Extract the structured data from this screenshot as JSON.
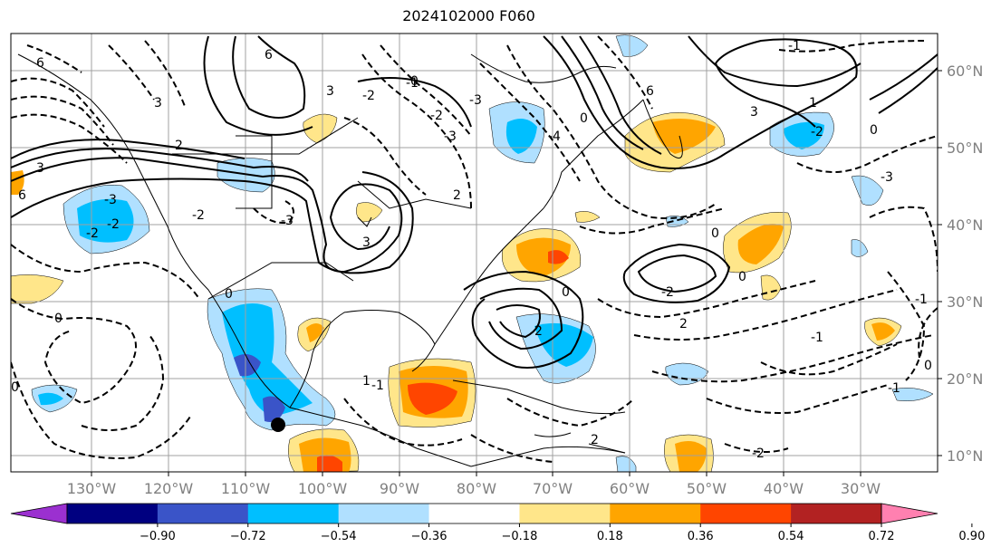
{
  "title": "2024102000 F060",
  "lat_labels": [
    "60°N",
    "50°N",
    "40°N",
    "30°N",
    "20°N",
    "10°N"
  ],
  "lon_labels": [
    "130°W",
    "120°W",
    "110°W",
    "100°W",
    "90°W",
    "80°W",
    "70°W",
    "60°W",
    "50°W",
    "40°W",
    "30°W"
  ],
  "colorbar": {
    "tick_labels": [
      "−0.90",
      "−0.72",
      "−0.54",
      "−0.36",
      "−0.18",
      "0.18",
      "0.36",
      "0.54",
      "0.72",
      "0.90"
    ],
    "colors": [
      "#9b30d0",
      "#000080",
      "#3a54c8",
      "#00bfff",
      "#b0e0ff",
      "#ffffff",
      "#ffe68a",
      "#ffa500",
      "#ff4500",
      "#b22222",
      "#ff80b0"
    ]
  },
  "contour_labels": [
    "6",
    "6",
    "3",
    "3",
    "2",
    "-3",
    "-2",
    "0",
    "3",
    "6",
    "-1",
    "-3",
    "-2",
    "-3",
    "-2",
    "6",
    "3",
    "-4",
    "-3",
    "2",
    "2",
    "-2",
    "-1",
    "2",
    "0",
    "-2",
    "2",
    "-2",
    "0",
    "-1",
    "-3",
    "-1",
    "0",
    "3",
    "-2",
    "-2",
    "0",
    "-1",
    "0",
    "1",
    "0",
    "0",
    "-1",
    "0",
    "1",
    "0"
  ],
  "colors": {
    "positive_field": "#ffa500",
    "negative_field": "#00bfff",
    "grid": "#a0a0a0"
  }
}
